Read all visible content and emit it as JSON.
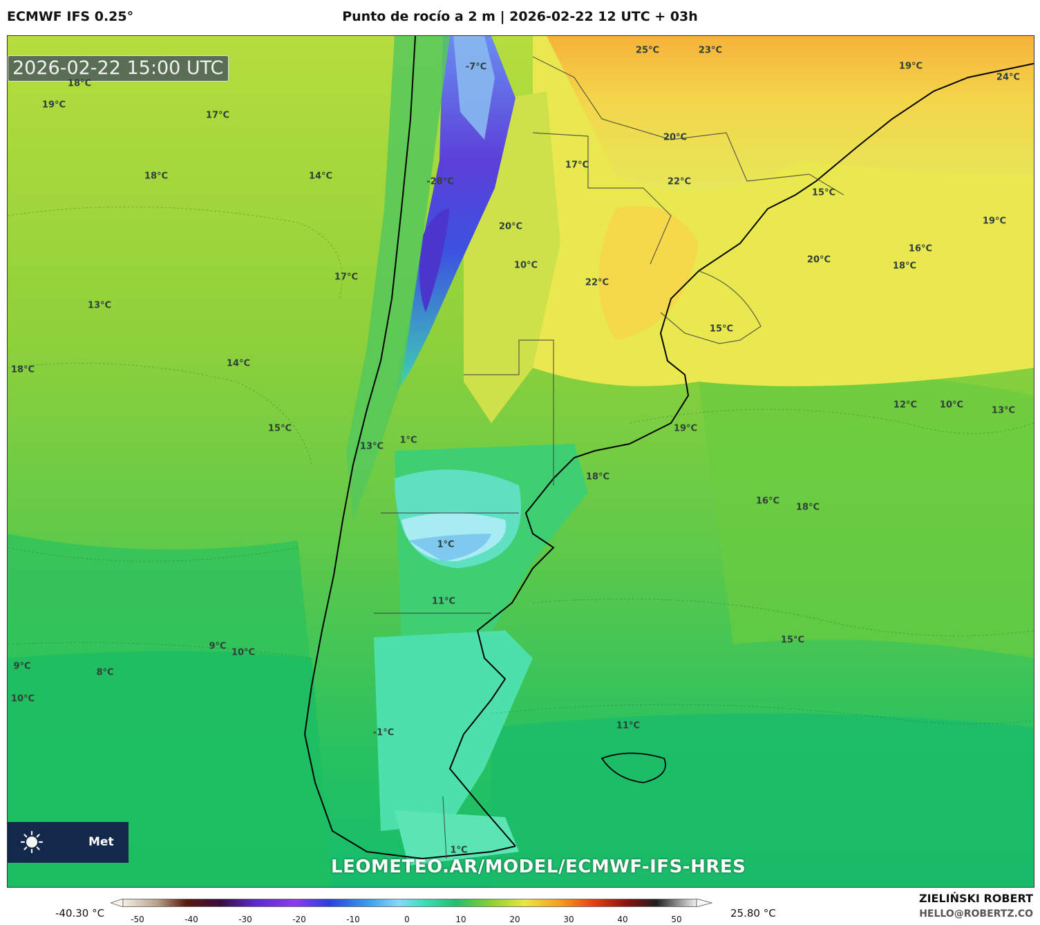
{
  "header": {
    "model": "ECMWF IFS 0.25°",
    "title": "Punto de rocío a 2 m | 2026-02-22 12 UTC + 03h"
  },
  "map": {
    "valid_time": "2026-02-22 15:00 UTC",
    "watermark": "LEOMETEO.AR/MODEL/ECMWF-IFS-HRES",
    "labels": [
      "18°C",
      "19°C",
      "17°C",
      "18°C",
      "14°C",
      "-7°C",
      "25°C",
      "23°C",
      "19°C",
      "24°C",
      "20°C",
      "17°C",
      "22°C",
      "15°C",
      "-28°C",
      "20°C",
      "19°C",
      "16°C",
      "20°C",
      "18°C",
      "10°C",
      "22°C",
      "17°C",
      "13°C",
      "15°C",
      "14°C",
      "18°C",
      "12°C",
      "10°C",
      "13°C",
      "19°C",
      "15°C",
      "1°C",
      "13°C",
      "18°C",
      "16°C",
      "18°C",
      "1°C",
      "11°C",
      "9°C",
      "10°C",
      "9°C",
      "8°C",
      "15°C",
      "10°C",
      "11°C",
      "-1°C",
      "1°C"
    ]
  },
  "logo": {
    "icon": "sun-icon",
    "text": "Met"
  },
  "colorbar": {
    "min_label": "-40.30 °C",
    "max_label": "25.80 °C",
    "ticks": [
      "-50",
      "-40",
      "-30",
      "-20",
      "-10",
      "0",
      "10",
      "20",
      "30",
      "40",
      "50"
    ]
  },
  "credits": {
    "author": "ZIELIŃSKI ROBERT",
    "email": "HELLO@ROBERTZ.CO"
  }
}
